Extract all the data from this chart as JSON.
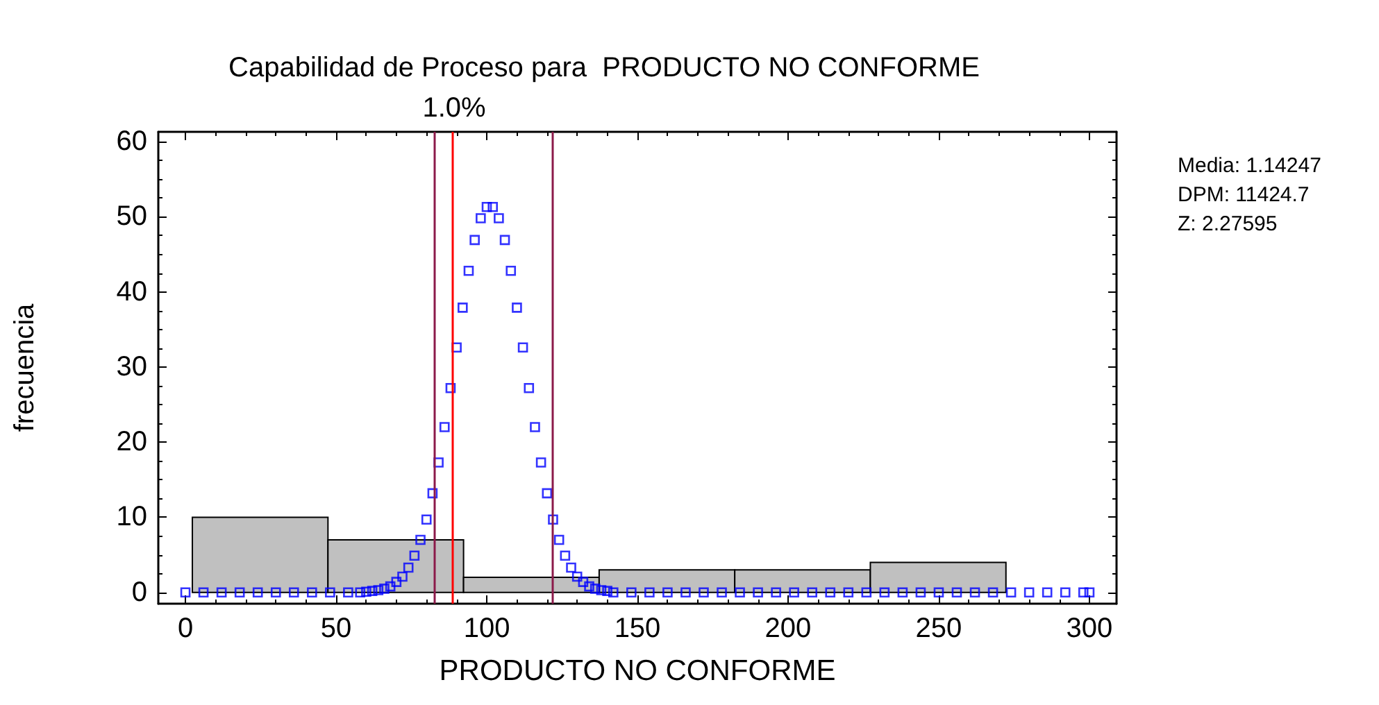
{
  "chart_data": {
    "type": "histogram",
    "title": "Capabilidad de Proceso para  PRODUCTO NO CONFORME",
    "subtitle": "1.0%",
    "xlabel": "PRODUCTO NO CONFORME",
    "ylabel": "frecuencia",
    "annotations": [
      "Media: 1.14247",
      "DPM: 11424.7",
      "Z: 2.27595"
    ],
    "bins": [
      2.3,
      47.3,
      92.3,
      137.3,
      182.3,
      227.3,
      272.3
    ],
    "values": [
      10,
      7,
      2,
      3,
      3,
      4
    ],
    "color": "#c0c0c0",
    "series": [
      {
        "type": "scatter",
        "color": "#0000ff",
        "x": [
          0,
          6,
          12,
          18,
          24,
          30,
          36,
          42,
          48,
          54,
          58,
          60,
          62,
          64,
          66,
          68,
          70,
          72,
          74,
          76,
          78,
          80,
          82,
          84,
          86,
          88,
          90,
          92,
          94,
          96,
          98,
          100,
          102,
          104,
          106,
          108,
          110,
          112,
          114,
          116,
          118,
          120,
          122,
          124,
          126,
          128,
          130,
          132,
          134,
          136,
          138,
          140,
          142,
          148,
          154,
          160,
          166,
          172,
          178,
          184,
          190,
          196,
          202,
          208,
          214,
          220,
          226,
          232,
          238,
          244,
          250,
          256,
          262,
          268,
          274,
          280,
          286,
          292,
          298,
          300
        ],
        "values": [
          0,
          0,
          0,
          0,
          0,
          0,
          0,
          0,
          0,
          0,
          0,
          0.1,
          0.2,
          0.3,
          0.5,
          0.8,
          1.4,
          2.1,
          3.3,
          4.9,
          7.0,
          9.7,
          13.2,
          17.3,
          22.0,
          27.2,
          32.6,
          37.9,
          42.8,
          46.9,
          49.8,
          51.3,
          51.3,
          49.8,
          46.9,
          42.8,
          37.9,
          32.6,
          27.2,
          22.0,
          17.3,
          13.2,
          9.7,
          7.0,
          4.9,
          3.3,
          2.1,
          1.4,
          0.8,
          0.5,
          0.3,
          0.2,
          0,
          0,
          0,
          0,
          0,
          0,
          0,
          0,
          0,
          0,
          0,
          0,
          0,
          0,
          0,
          0,
          0,
          0,
          0,
          0,
          0,
          0,
          0,
          0,
          0,
          0,
          0,
          0
        ]
      }
    ],
    "marker": "square",
    "ref_lines": [
      {
        "axis": "x",
        "value": 88.6,
        "color": "#ff0000"
      },
      {
        "axis": "x",
        "value": 82.7,
        "color": "#8b1a4a"
      },
      {
        "axis": "x",
        "value": 121.8,
        "color": "#8b1a4a"
      }
    ],
    "xlim": [
      -9,
      309
    ],
    "xticks": [
      0,
      50,
      100,
      150,
      200,
      250,
      300
    ],
    "ylim": [
      -1.5,
      61.3
    ],
    "yticks": [
      0,
      10,
      20,
      30,
      40,
      50,
      60
    ],
    "grid": false
  }
}
